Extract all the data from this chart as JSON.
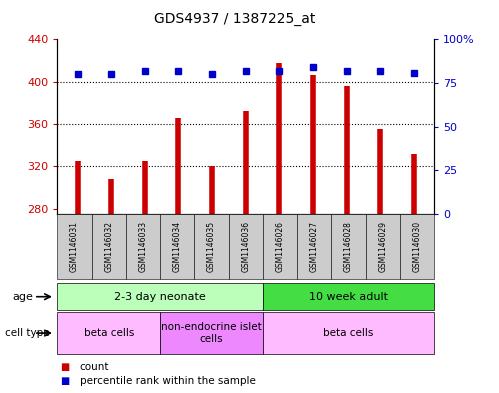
{
  "title": "GDS4937 / 1387225_at",
  "samples": [
    "GSM1146031",
    "GSM1146032",
    "GSM1146033",
    "GSM1146034",
    "GSM1146035",
    "GSM1146036",
    "GSM1146026",
    "GSM1146027",
    "GSM1146028",
    "GSM1146029",
    "GSM1146030"
  ],
  "counts": [
    325,
    308,
    325,
    366,
    320,
    372,
    418,
    406,
    396,
    355,
    332
  ],
  "percentiles": [
    80,
    80,
    82,
    82,
    80,
    82,
    82,
    84,
    82,
    82,
    81
  ],
  "ylim_left": [
    275,
    440
  ],
  "ylim_right": [
    0,
    100
  ],
  "yticks_left": [
    280,
    320,
    360,
    400,
    440
  ],
  "yticks_right": [
    0,
    25,
    50,
    75,
    100
  ],
  "bar_color": "#cc0000",
  "dot_color": "#0000cc",
  "bar_width": 0.35,
  "age_groups": [
    {
      "label": "2-3 day neonate",
      "start": 0,
      "end": 6,
      "color": "#bbffbb"
    },
    {
      "label": "10 week adult",
      "start": 6,
      "end": 11,
      "color": "#44dd44"
    }
  ],
  "cell_type_groups": [
    {
      "label": "beta cells",
      "start": 0,
      "end": 3,
      "color": "#ffbbff"
    },
    {
      "label": "non-endocrine islet\ncells",
      "start": 3,
      "end": 6,
      "color": "#ee88ff"
    },
    {
      "label": "beta cells",
      "start": 6,
      "end": 11,
      "color": "#ffbbff"
    }
  ],
  "legend_items": [
    {
      "label": "count",
      "color": "#cc0000"
    },
    {
      "label": "percentile rank within the sample",
      "color": "#0000cc"
    }
  ],
  "tick_color_left": "#cc0000",
  "tick_color_right": "#0000cc",
  "grid_color": "#000000",
  "sample_bg_color": "#cccccc",
  "plot_bg": "#ffffff"
}
